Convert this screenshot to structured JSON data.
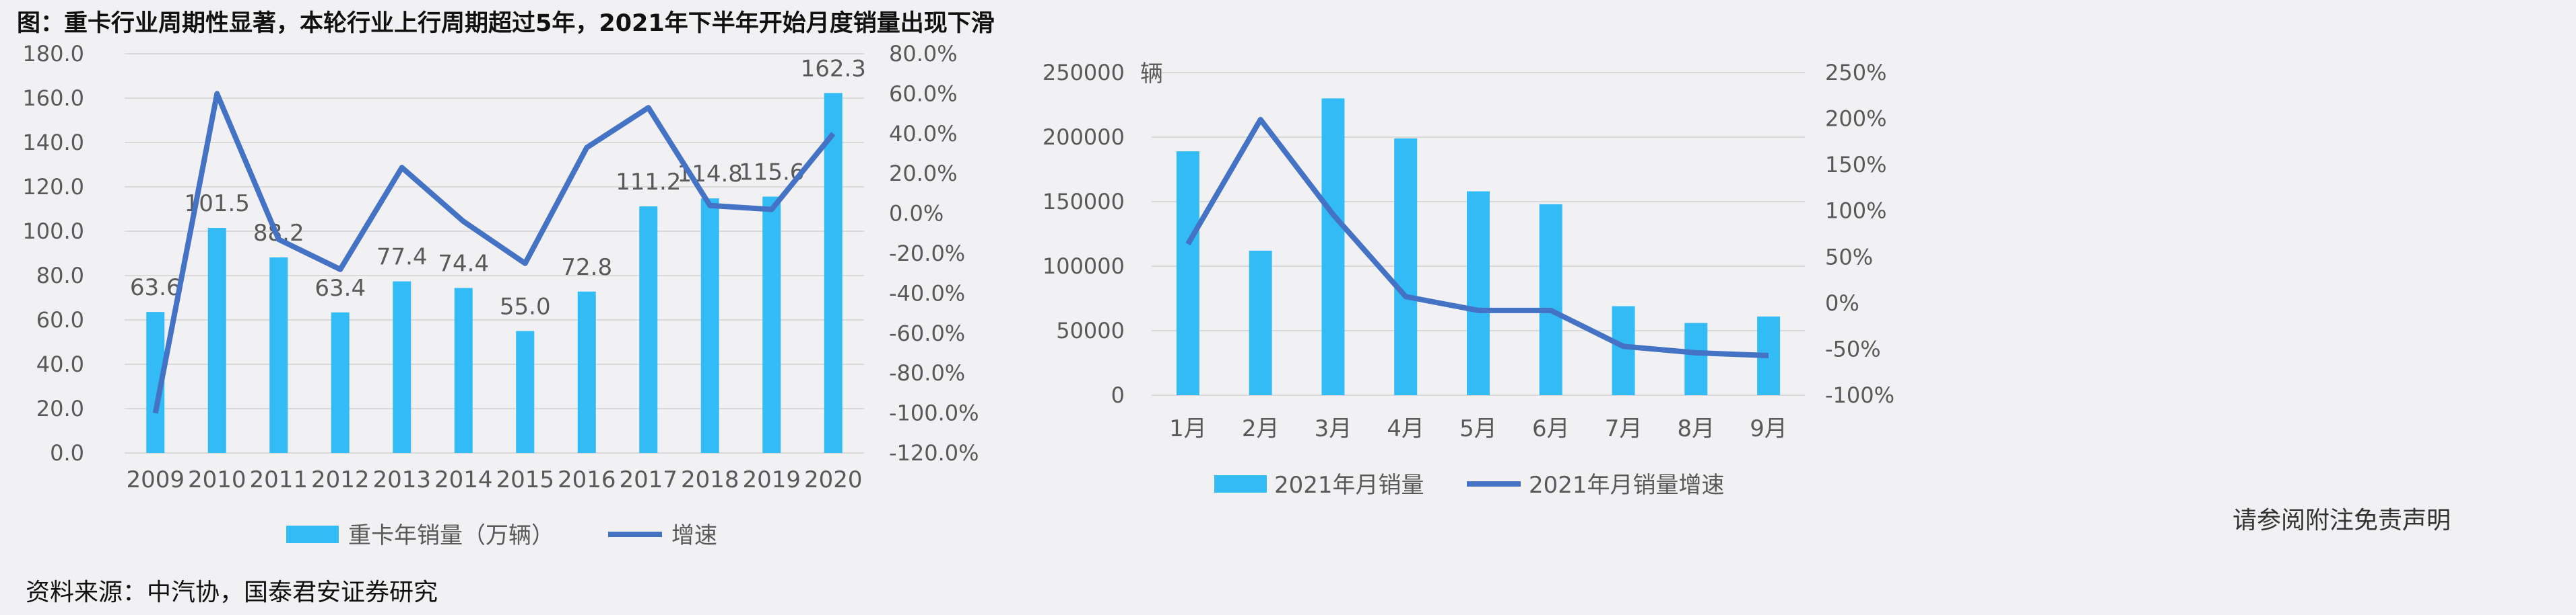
{
  "title": "图：重卡行业周期性显著，本轮行业上行周期超过5年，2021年下半年开始月度销量出现下滑",
  "source": "资料来源：中汽协，国泰君安证券研究",
  "disclaimer": "请参阅附注免责声明",
  "colors": {
    "bar": "#33bbf5",
    "line": "#4472c4",
    "grid": "#d9d9d9",
    "text": "#595959"
  },
  "chart_data": [
    {
      "type": "bar",
      "categories": [
        "2009",
        "2010",
        "2011",
        "2012",
        "2013",
        "2014",
        "2015",
        "2016",
        "2017",
        "2018",
        "2019",
        "2020"
      ],
      "series": [
        {
          "name": "重卡年销量（万辆）",
          "type": "bar",
          "axis": "left",
          "values": [
            63.6,
            101.5,
            88.2,
            63.4,
            77.4,
            74.4,
            55.0,
            72.8,
            111.2,
            114.8,
            115.6,
            162.3
          ],
          "labels": [
            "63.6",
            "101.5",
            "88.2",
            "63.4",
            "77.4",
            "74.4",
            "55.0",
            "72.8",
            "111.2",
            "114.8",
            "115.6",
            "162.3"
          ]
        },
        {
          "name": "增速",
          "type": "line",
          "axis": "right",
          "values": [
            -100.0,
            60.0,
            -13.0,
            -28.0,
            23.0,
            -4.0,
            -25.0,
            33.0,
            53.0,
            4.0,
            2.0,
            40.0
          ]
        }
      ],
      "ylim": [
        0,
        180
      ],
      "y2lim": [
        -120,
        80
      ],
      "yticks": [
        "0.0",
        "20.0",
        "40.0",
        "60.0",
        "80.0",
        "100.0",
        "120.0",
        "140.0",
        "160.0",
        "180.0"
      ],
      "y2ticks": [
        "-120.0%",
        "-100.0%",
        "-80.0%",
        "-60.0%",
        "-40.0%",
        "-20.0%",
        "0.0%",
        "20.0%",
        "40.0%",
        "60.0%",
        "80.0%"
      ],
      "legend": [
        "重卡年销量（万辆）",
        "增速"
      ],
      "legend_position": "bottom"
    },
    {
      "type": "bar",
      "categories": [
        "1月",
        "2月",
        "3月",
        "4月",
        "5月",
        "6月",
        "7月",
        "8月",
        "9月"
      ],
      "series": [
        {
          "name": "2021年月销量",
          "type": "bar",
          "axis": "left",
          "values": [
            189000,
            112000,
            230000,
            199000,
            158000,
            148000,
            69000,
            56000,
            61000
          ]
        },
        {
          "name": "2021年月销量增速",
          "type": "line",
          "axis": "right",
          "values": [
            64,
            199,
            96,
            7,
            -8,
            -8,
            -47,
            -54,
            -57
          ]
        }
      ],
      "ylabel": "辆",
      "ylim": [
        0,
        250000
      ],
      "y2lim": [
        -100,
        250
      ],
      "yticks": [
        "0",
        "50000",
        "100000",
        "150000",
        "200000",
        "250000"
      ],
      "y2ticks": [
        "-100%",
        "-50%",
        "0%",
        "50%",
        "100%",
        "150%",
        "200%",
        "250%"
      ],
      "legend": [
        "2021年月销量",
        "2021年月销量增速"
      ],
      "legend_position": "bottom"
    }
  ]
}
